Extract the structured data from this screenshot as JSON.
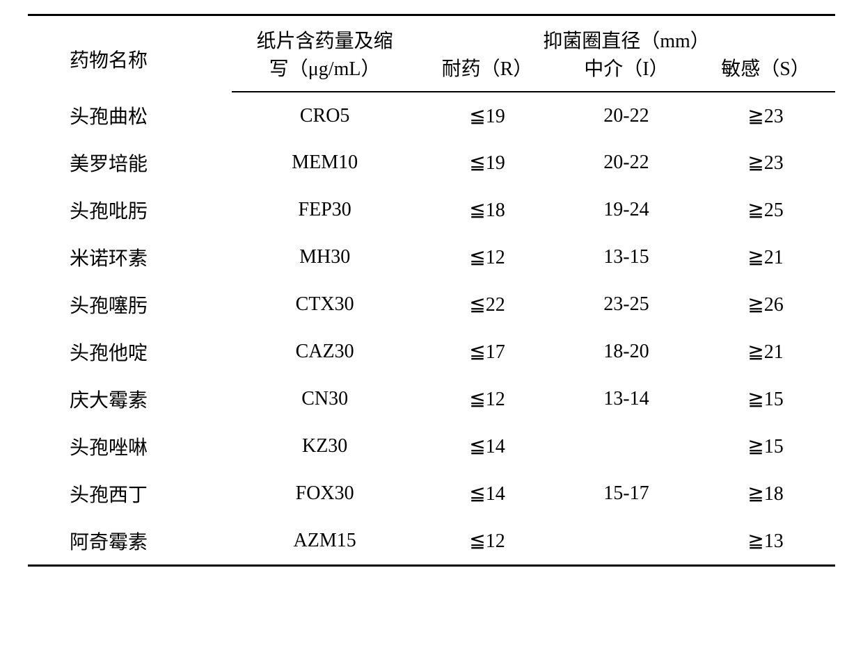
{
  "table": {
    "headers": {
      "name_line1": "药物名称",
      "abbr_line1": "纸片含药量及缩",
      "abbr_line2": "写（μg/mL）",
      "zone_group": "抑菌圈直径（mm）",
      "r": "耐药（R）",
      "i": "中介（I）",
      "s": "敏感（S）"
    },
    "rows": [
      {
        "name": "头孢曲松",
        "abbr": "CRO5",
        "r": "≦19",
        "i": "20-22",
        "s": "≧23"
      },
      {
        "name": "美罗培能",
        "abbr": "MEM10",
        "r": "≦19",
        "i": "20-22",
        "s": "≧23"
      },
      {
        "name": "头孢吡肟",
        "abbr": "FEP30",
        "r": "≦18",
        "i": "19-24",
        "s": "≧25"
      },
      {
        "name": "米诺环素",
        "abbr": "MH30",
        "r": "≦12",
        "i": "13-15",
        "s": "≧21"
      },
      {
        "name": "头孢噻肟",
        "abbr": "CTX30",
        "r": "≦22",
        "i": "23-25",
        "s": "≧26"
      },
      {
        "name": "头孢他啶",
        "abbr": "CAZ30",
        "r": "≦17",
        "i": "18-20",
        "s": "≧21"
      },
      {
        "name": "庆大霉素",
        "abbr": "CN30",
        "r": "≦12",
        "i": "13-14",
        "s": "≧15"
      },
      {
        "name": "头孢唑啉",
        "abbr": "KZ30",
        "r": "≦14",
        "i": "",
        "s": "≧15"
      },
      {
        "name": "头孢西丁",
        "abbr": "FOX30",
        "r": "≦14",
        "i": "15-17",
        "s": "≧18"
      },
      {
        "name": "阿奇霉素",
        "abbr": "AZM15",
        "r": "≦12",
        "i": "",
        "s": "≧13"
      }
    ]
  },
  "styles": {
    "font_family": "SimSun",
    "font_size": 28,
    "text_color": "#000000",
    "background_color": "#ffffff",
    "top_border_width": 3,
    "header_bottom_border_width": 2,
    "bottom_border_width": 3,
    "border_color": "#000000",
    "row_padding_y": 14,
    "column_widths_pct": {
      "name": 22,
      "abbr": 20,
      "r": 15,
      "i": 15,
      "s": 15
    }
  }
}
